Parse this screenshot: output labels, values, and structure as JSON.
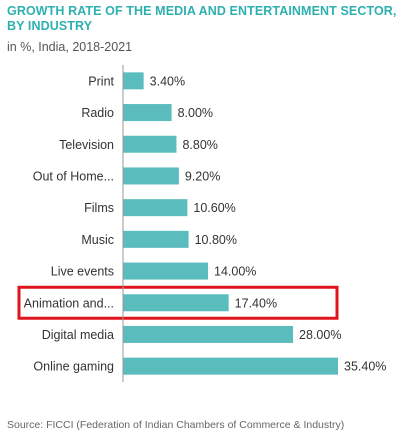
{
  "title": "GROWTH RATE OF THE MEDIA AND ENTERTAINMENT SECTOR, BY INDUSTRY",
  "subtitle": "in %, India, 2018-2021",
  "source": "Source: FICCI (Federation of Indian Chambers of Commerce & Industry)",
  "colors": {
    "bar": "#5bbcbd",
    "title": "#2eb0b0",
    "highlight": "#e0141c",
    "axis": "#9a9a9a"
  },
  "chart_data": {
    "type": "bar",
    "orientation": "horizontal",
    "categories": [
      "Print",
      "Radio",
      "Television",
      "Out of Home...",
      "Films",
      "Music",
      "Live events",
      "Animation and...",
      "Digital media",
      "Online gaming"
    ],
    "values": [
      3.4,
      8.0,
      8.8,
      9.2,
      10.6,
      10.8,
      14.0,
      17.4,
      28.0,
      35.4
    ],
    "value_labels": [
      "3.40%",
      "8.00%",
      "8.80%",
      "9.20%",
      "10.60%",
      "10.80%",
      "14.00%",
      "17.40%",
      "28.00%",
      "35.40%"
    ],
    "highlighted_category": "Animation and...",
    "xlim": [
      0,
      35.4
    ],
    "grid": false,
    "legend": "none"
  }
}
